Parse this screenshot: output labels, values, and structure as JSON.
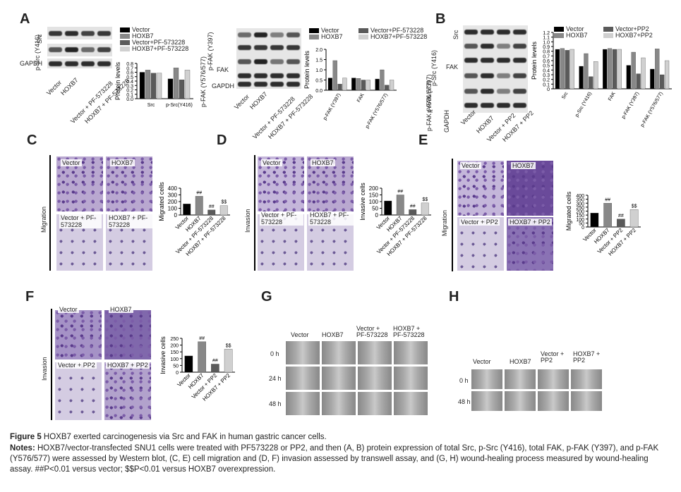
{
  "panels": {
    "A": "A",
    "B": "B",
    "C": "C",
    "D": "D",
    "E": "E",
    "F": "F",
    "G": "G",
    "H": "H"
  },
  "blot_rows": {
    "A": [
      "Src",
      "p-Src (Y416)",
      "GAPDH"
    ],
    "A2": [
      "p-FAK (Y397)",
      "FAK",
      "p-FAK (Y576/577)",
      "GAPDH"
    ],
    "B": [
      "Src",
      "p-Src (Y416)",
      "FAK",
      "p-FAK (Y397)",
      "p-FAK (Y576/577)",
      "GAPDH"
    ]
  },
  "blot_cols_pf": [
    "Vector",
    "HOXB7",
    "Vector + PF-573228",
    "HOXB7 + PF-573228"
  ],
  "blot_cols_pp2": [
    "Vector",
    "HOXB7",
    "Vector + PP2",
    "HOXB7 + PP2"
  ],
  "legends": {
    "pf": [
      "Vector",
      "HOXB7",
      "Vector+PF-573228",
      "HOXB7+PF-573228"
    ],
    "pp2": [
      "Vector",
      "Vector+PP2",
      "HOXB7",
      "HOXB7+PP2"
    ]
  },
  "colors": {
    "vector": "#000000",
    "hoxb7": "#888888",
    "treat": "#5a5a5a",
    "hoxtreat": "#d0d0d0"
  },
  "axis_labels": {
    "protein": "Protein levels",
    "migrated": "Migrated cells",
    "invasive": "Invasive cells",
    "migration": "Migration",
    "invasion": "Invasion"
  },
  "micro_labels": {
    "vector": "Vector",
    "hoxb7": "HOXB7",
    "vec_pf": "Vector + PF-573228",
    "hox_pf": "HOXB7 + PF-573228",
    "vec_pp2": "Vector + PP2",
    "hox_pp2": "HOXB7 + PP2"
  },
  "wound_times_G": [
    "0 h",
    "24 h",
    "48 h"
  ],
  "wound_times_H": [
    "0 h",
    "48 h"
  ],
  "sig": {
    "hash": "##",
    "dollar": "$$"
  },
  "chart_data": [
    {
      "type": "bar",
      "panel": "A-left",
      "categories": [
        "Src",
        "p-Src(Y416)"
      ],
      "series": [
        {
          "name": "Vector",
          "values": [
            0.6,
            0.45
          ]
        },
        {
          "name": "HOXB7",
          "values": [
            0.65,
            0.7
          ]
        },
        {
          "name": "Vector+PF-573228",
          "values": [
            0.58,
            0.43
          ]
        },
        {
          "name": "HOXB7+PF-573228",
          "values": [
            0.58,
            0.65
          ]
        }
      ],
      "ylabel": "Protein levels",
      "ylim": [
        0,
        0.8
      ],
      "yticks": [
        "0.0",
        "0.1",
        "0.2",
        "0.3",
        "0.4",
        "0.5",
        "0.6",
        "0.7",
        "0.8"
      ]
    },
    {
      "type": "bar",
      "panel": "A-right",
      "categories": [
        "p-FAK (Y397)",
        "FAK",
        "p-FAK (Y576/577)"
      ],
      "series": [
        {
          "name": "Vector",
          "values": [
            0.6,
            0.6,
            0.55
          ]
        },
        {
          "name": "HOXB7",
          "values": [
            1.45,
            0.58,
            1.0
          ]
        },
        {
          "name": "Vector+PF-573228",
          "values": [
            0.3,
            0.5,
            0.25
          ]
        },
        {
          "name": "HOXB7+PF-573228",
          "values": [
            0.6,
            0.5,
            0.5
          ]
        }
      ],
      "ylabel": "Protein levels",
      "ylim": [
        0,
        2.0
      ],
      "yticks": [
        "0.0",
        "0.5",
        "1.0",
        "1.5",
        "2.0"
      ]
    },
    {
      "type": "bar",
      "panel": "B",
      "categories": [
        "Src",
        "p-Src (Y416)",
        "FAK",
        "p-FAK (Y397)",
        "p-FAK (Y576/577)"
      ],
      "series": [
        {
          "name": "Vector",
          "values": [
            0.84,
            0.48,
            0.84,
            0.5,
            0.42
          ]
        },
        {
          "name": "HOXB7",
          "values": [
            0.86,
            0.75,
            0.86,
            0.78,
            0.85
          ]
        },
        {
          "name": "Vector+PP2",
          "values": [
            0.82,
            0.26,
            0.84,
            0.32,
            0.3
          ]
        },
        {
          "name": "HOXB7+PP2",
          "values": [
            0.84,
            0.58,
            0.84,
            0.66,
            0.6
          ]
        }
      ],
      "ylabel": "Protein levels",
      "ylim": [
        0,
        1.2
      ],
      "yticks": [
        "0",
        "0.1",
        "0.2",
        "0.3",
        "0.4",
        "0.5",
        "0.6",
        "0.7",
        "0.8",
        "0.9",
        "1.0",
        "1.1",
        "1.2"
      ]
    },
    {
      "type": "bar",
      "panel": "C",
      "categories": [
        "Vector",
        "HOXB7",
        "Vector + PF-573228",
        "HOXB7 + PF-573228"
      ],
      "values": [
        165,
        280,
        75,
        140
      ],
      "ylabel": "Migrated cells",
      "ylim": [
        0,
        400
      ],
      "yticks": [
        "0",
        "100",
        "200",
        "300",
        "400"
      ]
    },
    {
      "type": "bar",
      "panel": "D",
      "categories": [
        "Vector",
        "HOXB7",
        "Vector + PF-573228",
        "HOXB7 + PF-573228"
      ],
      "values": [
        105,
        150,
        40,
        90
      ],
      "ylabel": "Invasive cells",
      "ylim": [
        0,
        200
      ],
      "yticks": [
        "0",
        "50",
        "100",
        "150",
        "200"
      ]
    },
    {
      "type": "bar",
      "panel": "E",
      "categories": [
        "Vector",
        "HOXB7",
        "Vector + PP2",
        "HOXB7 + PP2"
      ],
      "values": [
        175,
        300,
        100,
        220
      ],
      "ylabel": "Migrated cells",
      "ylim": [
        0,
        400
      ],
      "yticks": [
        "0",
        "50",
        "100",
        "150",
        "200",
        "250",
        "300",
        "350",
        "400"
      ]
    },
    {
      "type": "bar",
      "panel": "F",
      "categories": [
        "Vector",
        "HOXB7",
        "Vector + PP2",
        "HOXB7 + PP2"
      ],
      "values": [
        120,
        225,
        60,
        170
      ],
      "ylabel": "Invasive cells",
      "ylim": [
        0,
        250
      ],
      "yticks": [
        "0",
        "50",
        "100",
        "150",
        "200",
        "250"
      ]
    }
  ],
  "caption": {
    "title_bold": "Figure 5",
    "title": " HOXB7 exerted carcinogenesis via Src and FAK in human gastric cancer cells.",
    "notes_bold": "Notes:",
    "notes": " HOXB7/vector-transfected SNU1 cells were treated with PF573228 or PP2, and then (A, B) protein expression of total Src, p-Src (Y416), total FAK, p-FAK (Y397), and p-FAK (Y576/577) were assessed by Western blot, (C, E) cell migration and (D, F) invasion assessed by transwell assay, and (G, H) wound-healing process measured by wound-healing assay. ##P<0.01 versus vector; $$P<0.01 versus HOXB7 overexpression."
  }
}
